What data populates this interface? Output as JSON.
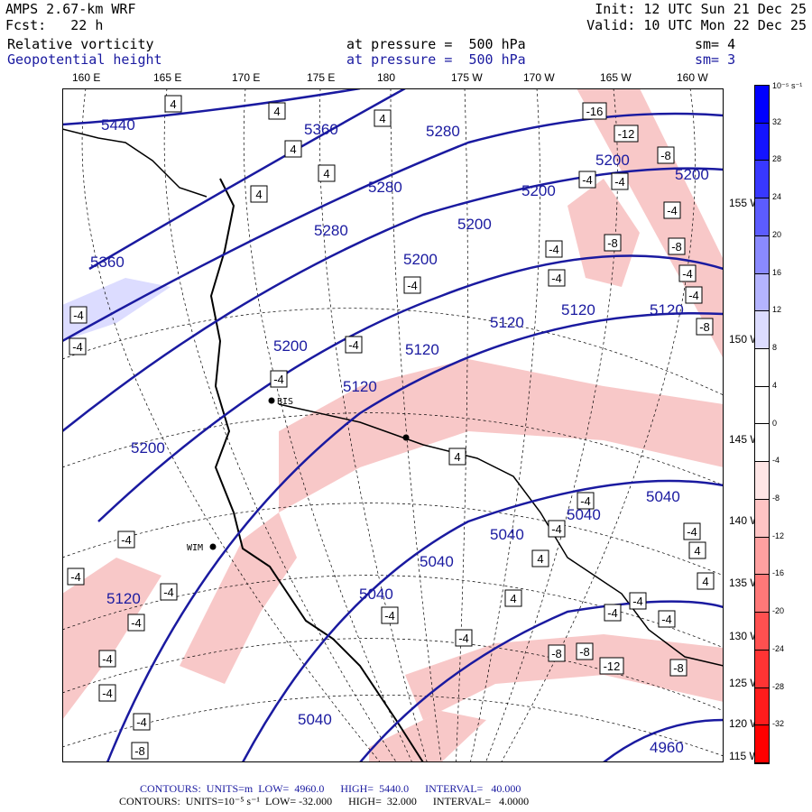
{
  "header": {
    "model": "AMPS 2.67-km WRF",
    "forecast": "Fcst:   22 h",
    "init": "Init: 12 UTC Sun 21 Dec 25",
    "valid": "Valid: 10 UTC Mon 22 Dec 25",
    "field1": "Relative vorticity",
    "field1_level": "at pressure =  500 hPa",
    "field1_sm": "sm= 4",
    "field2": "Geopotential height",
    "field2_level": "at pressure =  500 hPa",
    "field2_sm": "sm= 3"
  },
  "colors": {
    "height_contour": "#1a1aa0",
    "neg_vort": "#f5b5b5"
  },
  "chart_data": {
    "type": "heatmap",
    "lon_labels": [
      "160 E",
      "165 E",
      "170 E",
      "175 E",
      "180",
      "175 W",
      "170 W",
      "165 W",
      "160 W"
    ],
    "lat_labels": [
      "155 W",
      "150 W",
      "145 W",
      "140 W",
      "135 W",
      "130 W",
      "125 W",
      "120 W",
      "115 W"
    ],
    "colorbar": {
      "unit": "10⁻⁵ s⁻¹",
      "ticks": [
        "32",
        "28",
        "24",
        "20",
        "16",
        "12",
        "8",
        "4",
        "0",
        "-4",
        "-8",
        "-12",
        "-16",
        "-20",
        "-24",
        "-28",
        "-32"
      ],
      "colors": [
        "#0000ff",
        "#1414ff",
        "#3838ff",
        "#5c5cff",
        "#8a8aff",
        "#b4b4ff",
        "#dcdcff",
        "#ffffff",
        "#ffffff",
        "#ffffff",
        "#ffe6e6",
        "#ffc4c4",
        "#ffa0a0",
        "#ff7878",
        "#ff5050",
        "#ff3434",
        "#ff1c1c",
        "#ff0000"
      ]
    },
    "height_labels": [
      "5440",
      "5360",
      "5280",
      "5280",
      "5280",
      "5200",
      "5200",
      "5200",
      "5200",
      "5200",
      "5200",
      "5200",
      "5360",
      "5120",
      "5120",
      "5120",
      "5120",
      "5120",
      "5120",
      "5040",
      "5040",
      "5040",
      "5040",
      "5040",
      "5040",
      "4960"
    ],
    "vort_labels": [
      "4",
      "4",
      "4",
      "4",
      "4",
      "4",
      "-4",
      "-16",
      "-12",
      "-8",
      "-4",
      "-4",
      "-4",
      "-8",
      "-4",
      "-8",
      "-4",
      "-4",
      "-4",
      "-8",
      "-4",
      "-4",
      "-4",
      "-4",
      "4",
      "-4",
      "-4",
      "-4",
      "-4",
      "-4",
      "-4",
      "-4",
      "-8",
      "-8",
      "-8",
      "-12",
      "-8",
      "-4",
      "-4",
      "-4",
      "-4",
      "4",
      "4",
      "-4",
      "-4",
      "4",
      "4",
      "-4",
      "-4"
    ],
    "station_labels": [
      "BIS",
      "WIM"
    ]
  },
  "footer": {
    "line1": "CONTOURS:  UNITS=m  LOW=  4960.0      HIGH=  5440.0      INTERVAL=   40.000",
    "line2": "CONTOURS:  UNITS=10⁻⁵ s⁻¹  LOW= -32.000      HIGH=  32.000      INTERVAL=   4.0000"
  }
}
